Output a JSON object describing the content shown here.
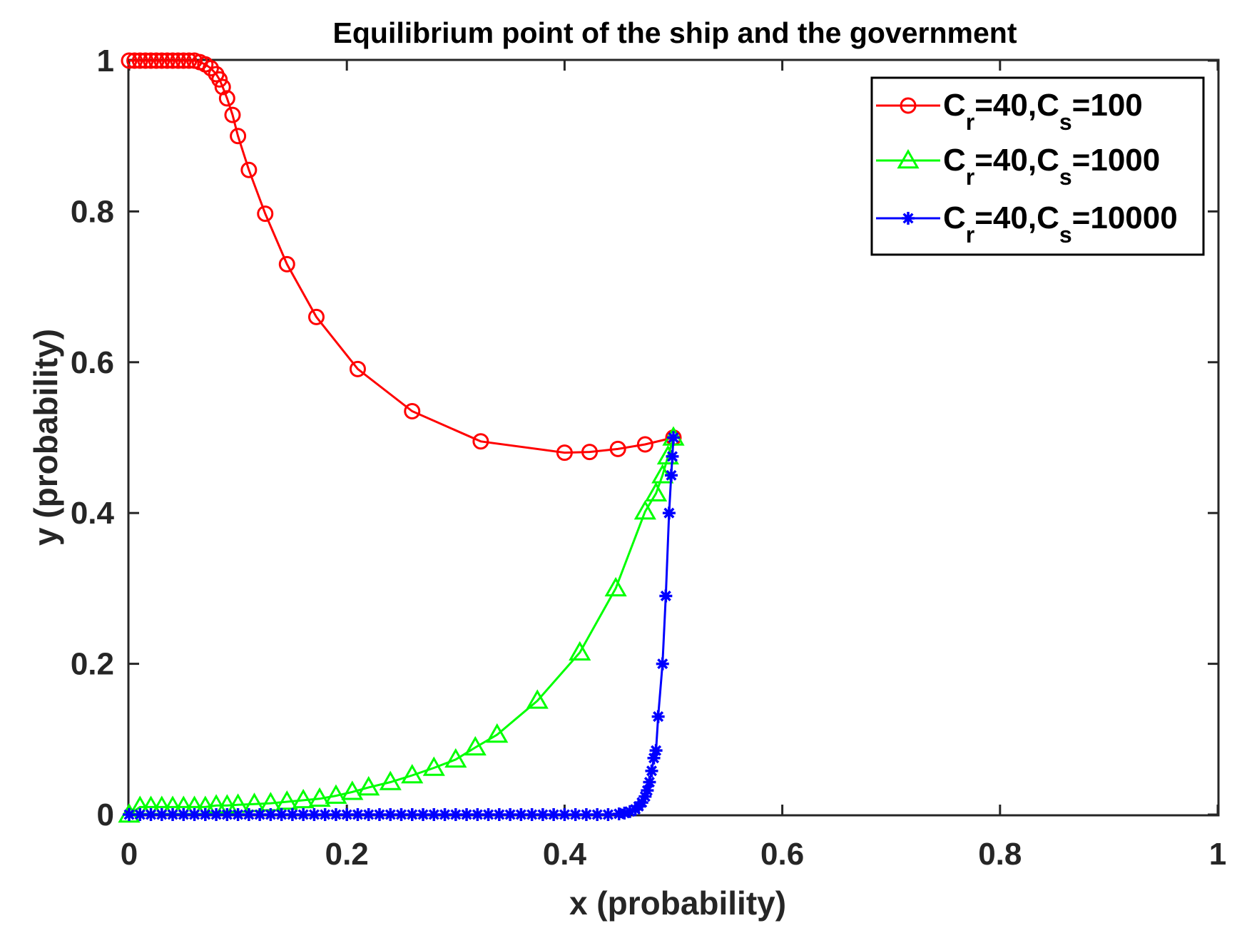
{
  "chart_data": {
    "type": "line",
    "title": "Equilibrium point of the ship and the government",
    "xlabel": "x (probability)",
    "ylabel": "y (probability)",
    "xlim": [
      0,
      1
    ],
    "ylim": [
      0,
      1
    ],
    "xticks": [
      "0",
      "0.2",
      "0.4",
      "0.6",
      "0.8",
      "1"
    ],
    "yticks": [
      "0",
      "0.2",
      "0.4",
      "0.6",
      "0.8",
      "1"
    ],
    "grid": false,
    "legend_position": "top-right",
    "series": [
      {
        "name": "C_r=40,C_s=100",
        "legend": {
          "a": "C",
          "a_sub": "r",
          "b": "=40,C",
          "b_sub": "s",
          "c": "=100"
        },
        "color": "#ff0000",
        "marker": "circle",
        "x": [
          0,
          0.005,
          0.01,
          0.015,
          0.02,
          0.025,
          0.03,
          0.035,
          0.04,
          0.045,
          0.05,
          0.055,
          0.06,
          0.065,
          0.07,
          0.075,
          0.08,
          0.083,
          0.086,
          0.09,
          0.095,
          0.1,
          0.11,
          0.125,
          0.145,
          0.172,
          0.21,
          0.26,
          0.323,
          0.4,
          0.423,
          0.449,
          0.474,
          0.5
        ],
        "y": [
          1,
          1,
          1,
          1,
          1,
          1,
          1,
          1,
          1,
          1,
          1,
          1,
          1,
          0.998,
          0.995,
          0.99,
          0.982,
          0.975,
          0.965,
          0.95,
          0.928,
          0.9,
          0.855,
          0.797,
          0.73,
          0.66,
          0.591,
          0.535,
          0.495,
          0.48,
          0.481,
          0.485,
          0.491,
          0.5
        ]
      },
      {
        "name": "C_r=40,C_s=1000",
        "legend": {
          "a": "C",
          "a_sub": "r",
          "b": "=40,C",
          "b_sub": "s",
          "c": "=1000"
        },
        "color": "#00ff00",
        "marker": "triangle",
        "x": [
          0,
          0.01,
          0.02,
          0.03,
          0.04,
          0.05,
          0.06,
          0.07,
          0.08,
          0.09,
          0.1,
          0.115,
          0.13,
          0.145,
          0.16,
          0.175,
          0.19,
          0.205,
          0.22,
          0.24,
          0.26,
          0.28,
          0.3,
          0.318,
          0.338,
          0.375,
          0.414,
          0.447,
          0.474,
          0.484,
          0.49,
          0.495,
          0.5
        ],
        "y": [
          0,
          0.01,
          0.01,
          0.01,
          0.01,
          0.01,
          0.01,
          0.01,
          0.012,
          0.012,
          0.013,
          0.014,
          0.015,
          0.017,
          0.019,
          0.021,
          0.025,
          0.03,
          0.036,
          0.043,
          0.052,
          0.062,
          0.073,
          0.089,
          0.106,
          0.151,
          0.215,
          0.3,
          0.402,
          0.426,
          0.45,
          0.475,
          0.5
        ]
      },
      {
        "name": "C_r=40,C_s=10000",
        "legend": {
          "a": "C",
          "a_sub": "r",
          "b": "=40,C",
          "b_sub": "s",
          "c": "=10000"
        },
        "color": "#0000ff",
        "marker": "asterisk",
        "x": [
          0,
          0.01,
          0.02,
          0.03,
          0.04,
          0.05,
          0.06,
          0.07,
          0.08,
          0.09,
          0.1,
          0.11,
          0.12,
          0.13,
          0.14,
          0.15,
          0.16,
          0.17,
          0.18,
          0.19,
          0.2,
          0.21,
          0.22,
          0.23,
          0.24,
          0.25,
          0.26,
          0.27,
          0.28,
          0.29,
          0.3,
          0.31,
          0.32,
          0.33,
          0.34,
          0.35,
          0.36,
          0.37,
          0.38,
          0.39,
          0.4,
          0.41,
          0.42,
          0.43,
          0.44,
          0.45,
          0.455,
          0.46,
          0.465,
          0.468,
          0.471,
          0.474,
          0.476,
          0.478,
          0.48,
          0.482,
          0.484,
          0.486,
          0.49,
          0.493,
          0.496,
          0.498,
          0.499,
          0.5
        ],
        "y": [
          0,
          0,
          0,
          0,
          0,
          0,
          0,
          0,
          0,
          0,
          0,
          0,
          0,
          0,
          0,
          0,
          0,
          0,
          0,
          0,
          0,
          0,
          0,
          0,
          0,
          0,
          0,
          0,
          0,
          0,
          0,
          0,
          0,
          0,
          0,
          0,
          0,
          0,
          0,
          0,
          0,
          0,
          0,
          0,
          0,
          0.001,
          0.002,
          0.004,
          0.007,
          0.011,
          0.016,
          0.024,
          0.032,
          0.043,
          0.058,
          0.075,
          0.085,
          0.13,
          0.2,
          0.29,
          0.4,
          0.45,
          0.475,
          0.5
        ]
      }
    ]
  }
}
